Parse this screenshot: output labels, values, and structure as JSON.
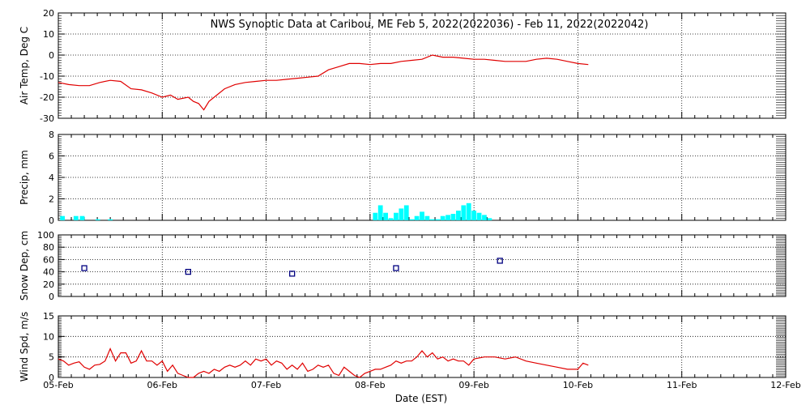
{
  "title": "NWS Synoptic Data at Caribou, ME   Feb  5, 2022(2022036) - Feb 11, 2022(2022042)",
  "colors": {
    "line": "#e00000",
    "precip": "#00ffff",
    "snow": "#000080",
    "axis": "#000000"
  },
  "x_axis": {
    "label": "Date (EST)",
    "ticks": [
      "05-Feb",
      "06-Feb",
      "07-Feb",
      "08-Feb",
      "09-Feb",
      "10-Feb",
      "11-Feb",
      "12-Feb"
    ],
    "xlim": [
      0,
      7
    ],
    "unit": "days since 05-Feb 00:00 EST"
  },
  "chart_data": [
    {
      "id": "airtemp",
      "type": "line",
      "ylabel": "Air Temp, Deg C",
      "ylim": [
        -30,
        20
      ],
      "yticks": [
        -30,
        -20,
        -10,
        0,
        10,
        20
      ],
      "grid": true,
      "series": [
        {
          "x": [
            0.0,
            0.1,
            0.2,
            0.3,
            0.4,
            0.5,
            0.6,
            0.7,
            0.8,
            0.9,
            1.0,
            1.08,
            1.15,
            1.25,
            1.3,
            1.35,
            1.4,
            1.45,
            1.5,
            1.6,
            1.7,
            1.8,
            1.9,
            2.0,
            2.1,
            2.2,
            2.3,
            2.4,
            2.5,
            2.6,
            2.7,
            2.8,
            2.9,
            3.0,
            3.1,
            3.2,
            3.3,
            3.4,
            3.5,
            3.6,
            3.7,
            3.8,
            3.9,
            4.0,
            4.1,
            4.2,
            4.3,
            4.4,
            4.5,
            4.6,
            4.7,
            4.8,
            4.9,
            5.0,
            5.1
          ],
          "y": [
            -13,
            -14,
            -14.5,
            -14.5,
            -13,
            -12,
            -12.5,
            -16,
            -16.5,
            -18,
            -20,
            -19,
            -21,
            -20,
            -22,
            -23,
            -26,
            -22,
            -20,
            -16,
            -14,
            -13,
            -12.5,
            -12,
            -12,
            -11.5,
            -11,
            -10.5,
            -10,
            -7,
            -5.5,
            -4,
            -4,
            -4.5,
            -4,
            -4,
            -3,
            -2.5,
            -2,
            0,
            -1,
            -1,
            -1.5,
            -2,
            -2,
            -2.5,
            -3,
            -3,
            -3,
            -2,
            -1.5,
            -2,
            -3,
            -4,
            -4.5
          ]
        }
      ]
    },
    {
      "id": "precip",
      "type": "bar",
      "ylabel": "Precip, mm",
      "ylim": [
        0,
        8
      ],
      "yticks": [
        0,
        2,
        4,
        6,
        8
      ],
      "grid": true,
      "series": [
        {
          "x": [
            0.04,
            0.17,
            0.23,
            0.38,
            0.5,
            3.05,
            3.1,
            3.15,
            3.2,
            3.25,
            3.3,
            3.35,
            3.4,
            3.45,
            3.5,
            3.55,
            3.6,
            3.65,
            3.7,
            3.75,
            3.8,
            3.85,
            3.9,
            3.95,
            4.0,
            4.05,
            4.1,
            4.15
          ],
          "y": [
            0.4,
            0.4,
            0.4,
            0.1,
            0.1,
            0.7,
            1.4,
            0.7,
            0.2,
            0.7,
            1.1,
            1.4,
            0.1,
            0.4,
            0.8,
            0.4,
            0.1,
            0.1,
            0.4,
            0.5,
            0.6,
            0.9,
            1.4,
            1.6,
            0.9,
            0.7,
            0.5,
            0.2
          ]
        }
      ]
    },
    {
      "id": "snowdep",
      "type": "scatter",
      "ylabel": "Snow Dep, cm",
      "ylim": [
        0,
        100
      ],
      "yticks": [
        0,
        20,
        40,
        60,
        80,
        100
      ],
      "grid": true,
      "series": [
        {
          "x": [
            0.25,
            1.25,
            2.25,
            3.25,
            4.25
          ],
          "y": [
            46,
            40,
            37,
            46,
            58
          ]
        }
      ]
    },
    {
      "id": "windspd",
      "type": "line",
      "ylabel": "Wind Spd, m/s",
      "ylim": [
        0,
        15
      ],
      "yticks": [
        0,
        5,
        10,
        15
      ],
      "grid": true,
      "series": [
        {
          "x": [
            0.0,
            0.05,
            0.1,
            0.15,
            0.2,
            0.25,
            0.3,
            0.35,
            0.4,
            0.45,
            0.5,
            0.55,
            0.6,
            0.65,
            0.7,
            0.75,
            0.8,
            0.85,
            0.9,
            0.95,
            1.0,
            1.05,
            1.1,
            1.15,
            1.2,
            1.25,
            1.3,
            1.35,
            1.4,
            1.45,
            1.5,
            1.55,
            1.6,
            1.65,
            1.7,
            1.75,
            1.8,
            1.85,
            1.9,
            1.95,
            2.0,
            2.05,
            2.1,
            2.15,
            2.2,
            2.25,
            2.3,
            2.35,
            2.4,
            2.45,
            2.5,
            2.55,
            2.6,
            2.65,
            2.7,
            2.75,
            2.8,
            2.85,
            2.9,
            2.95,
            3.0,
            3.05,
            3.1,
            3.15,
            3.2,
            3.25,
            3.3,
            3.35,
            3.4,
            3.45,
            3.5,
            3.55,
            3.6,
            3.65,
            3.7,
            3.75,
            3.8,
            3.85,
            3.9,
            3.95,
            4.0,
            4.1,
            4.2,
            4.3,
            4.4,
            4.5,
            4.6,
            4.7,
            4.8,
            4.9,
            5.0,
            5.05,
            5.1
          ],
          "y": [
            4.5,
            4,
            3,
            3.5,
            3.8,
            2.5,
            2,
            3,
            3.2,
            4,
            7,
            4,
            6,
            6,
            3.5,
            4,
            6.5,
            4,
            4,
            3,
            4,
            1.5,
            3,
            1,
            0.5,
            0,
            0,
            1,
            1.5,
            1,
            2,
            1.5,
            2.5,
            3,
            2.5,
            3,
            4,
            3,
            4.5,
            4,
            4.5,
            3,
            4,
            3.5,
            2,
            3,
            2,
            3.5,
            1.5,
            2,
            3,
            2.5,
            3,
            1,
            0.5,
            2.5,
            1.5,
            0.5,
            0,
            1,
            1.5,
            2,
            2,
            2.5,
            3,
            4,
            3.5,
            4,
            4,
            5,
            6.5,
            5,
            6,
            4.5,
            5,
            4,
            4.5,
            4,
            4,
            3,
            4.5,
            5,
            5,
            4.5,
            5,
            4,
            3.5,
            3,
            2.5,
            2,
            2,
            3.5,
            3
          ]
        }
      ]
    }
  ]
}
